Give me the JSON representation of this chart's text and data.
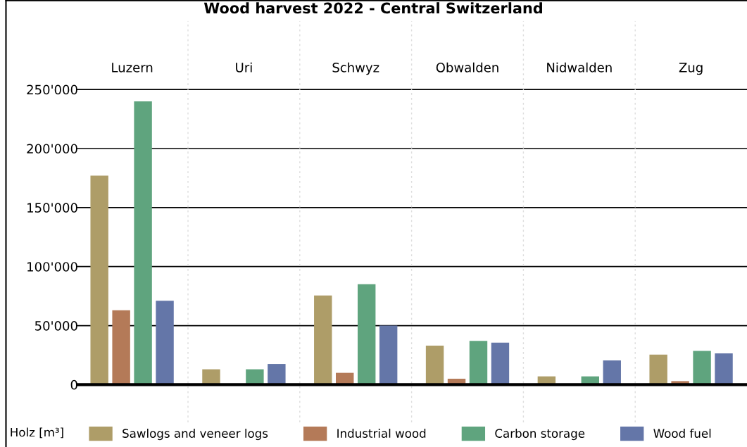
{
  "chart_data": {
    "type": "bar",
    "title": "Wood harvest 2022 - Central Switzerland",
    "ylabel": "Holz [m³]",
    "categories": [
      "Luzern",
      "Uri",
      "Schwyz",
      "Obwalden",
      "Nidwalden",
      "Zug"
    ],
    "series": [
      {
        "name": "Sawlogs and veneer logs",
        "color": "#ae9d68",
        "values": [
          177000,
          13000,
          75500,
          33000,
          7000,
          25500
        ]
      },
      {
        "name": "Industrial wood",
        "color": "#b47a58",
        "values": [
          63000,
          null,
          10000,
          5000,
          null,
          3000
        ]
      },
      {
        "name": "Carbon storage",
        "color": "#5fa47e",
        "values": [
          240000,
          13000,
          85000,
          37000,
          7000,
          28500
        ]
      },
      {
        "name": "Wood fuel",
        "color": "#6476a8",
        "values": [
          71000,
          17500,
          50000,
          35500,
          20500,
          26500
        ]
      }
    ],
    "ylim": [
      -32000,
      308000
    ],
    "yticks": [
      0,
      {
        "value": 50000,
        "label": "50'000"
      },
      {
        "value": 100000,
        "label": "100'000"
      },
      {
        "value": 150000,
        "label": "150'000"
      },
      {
        "value": 200000,
        "label": "200'000"
      },
      {
        "value": 250000,
        "label": "250'000"
      }
    ],
    "grid": "y",
    "legend": "bottom"
  }
}
